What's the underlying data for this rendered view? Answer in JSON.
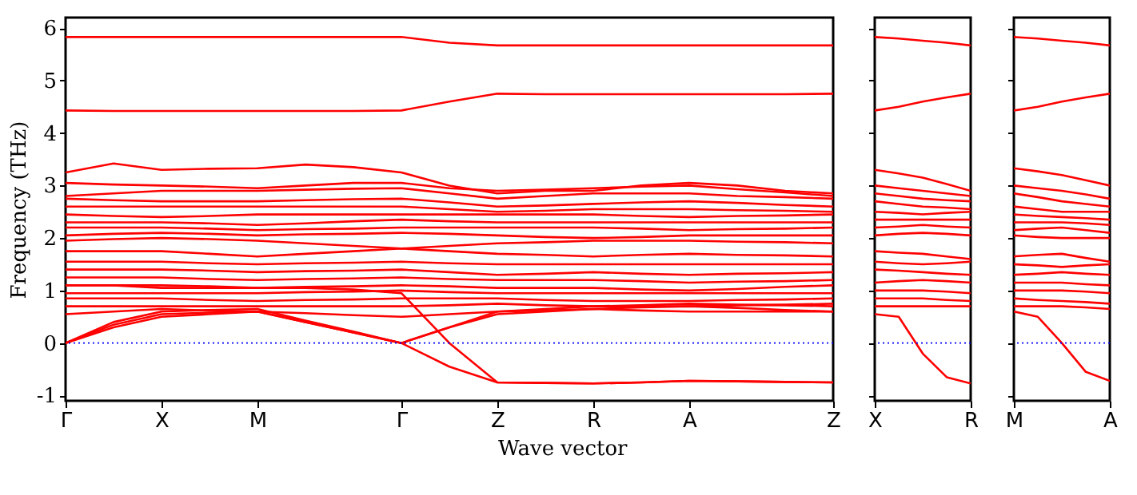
{
  "chart_data": [
    {
      "type": "line",
      "xlabel": "Wave vector",
      "ylabel": "Frequency (THz)",
      "categories": [
        "Γ",
        null,
        "X",
        null,
        "M",
        null,
        null,
        "Γ",
        null,
        "Z",
        null,
        "R",
        null,
        "A",
        null,
        null,
        "Z"
      ],
      "ylim": [
        -1.1,
        6.2
      ],
      "yticks": [
        -1,
        0,
        1,
        2,
        3,
        4,
        5,
        6
      ],
      "grid": false,
      "legend": false,
      "line_style": "solid",
      "marker": "none",
      "ref_lines": [
        {
          "axis": "y",
          "value": 0,
          "color": "#0000ff",
          "line_style": "dotted"
        }
      ],
      "series": [
        {
          "color": "#ff0000",
          "values": [
            5.83,
            5.83,
            5.83,
            5.83,
            5.83,
            5.83,
            5.83,
            5.83,
            5.72,
            5.67,
            5.67,
            5.67,
            5.67,
            5.67,
            5.67,
            5.67,
            5.67
          ]
        },
        {
          "color": "#ff0000",
          "values": [
            4.43,
            4.42,
            4.42,
            4.42,
            4.42,
            4.42,
            4.42,
            4.43,
            4.6,
            4.75,
            4.74,
            4.74,
            4.74,
            4.74,
            4.74,
            4.74,
            4.75
          ]
        },
        {
          "color": "#ff0000",
          "values": [
            3.25,
            3.42,
            3.3,
            3.32,
            3.33,
            3.4,
            3.35,
            3.25,
            3.0,
            2.85,
            2.9,
            2.9,
            3.0,
            3.05,
            3.0,
            2.9,
            2.85
          ]
        },
        {
          "color": "#ff0000",
          "values": [
            3.05,
            3.02,
            3.0,
            2.98,
            2.95,
            3.0,
            3.05,
            3.05,
            2.95,
            2.9,
            2.92,
            2.95,
            2.98,
            3.0,
            2.93,
            2.87,
            2.8
          ]
        },
        {
          "color": "#ff0000",
          "values": [
            2.8,
            2.85,
            2.9,
            2.9,
            2.9,
            2.92,
            2.94,
            2.95,
            2.85,
            2.75,
            2.8,
            2.85,
            2.85,
            2.85,
            2.8,
            2.78,
            2.75
          ]
        },
        {
          "color": "#ff0000",
          "values": [
            2.75,
            2.72,
            2.7,
            2.7,
            2.7,
            2.72,
            2.74,
            2.75,
            2.68,
            2.6,
            2.62,
            2.65,
            2.68,
            2.7,
            2.67,
            2.63,
            2.6
          ]
        },
        {
          "color": "#ff0000",
          "values": [
            2.6,
            2.6,
            2.6,
            2.6,
            2.6,
            2.6,
            2.6,
            2.6,
            2.55,
            2.5,
            2.52,
            2.55,
            2.55,
            2.55,
            2.53,
            2.52,
            2.5
          ]
        },
        {
          "color": "#ff0000",
          "values": [
            2.45,
            2.42,
            2.4,
            2.42,
            2.45,
            2.45,
            2.45,
            2.45,
            2.45,
            2.45,
            2.45,
            2.45,
            2.42,
            2.4,
            2.42,
            2.43,
            2.45
          ]
        },
        {
          "color": "#ff0000",
          "values": [
            2.3,
            2.3,
            2.3,
            2.28,
            2.25,
            2.28,
            2.32,
            2.35,
            2.32,
            2.3,
            2.3,
            2.3,
            2.3,
            2.3,
            2.3,
            2.3,
            2.3
          ]
        },
        {
          "color": "#ff0000",
          "values": [
            2.2,
            2.2,
            2.2,
            2.18,
            2.15,
            2.17,
            2.18,
            2.2,
            2.2,
            2.2,
            2.2,
            2.2,
            2.18,
            2.15,
            2.17,
            2.18,
            2.2
          ]
        },
        {
          "color": "#ff0000",
          "values": [
            2.05,
            2.08,
            2.1,
            2.08,
            2.05,
            2.07,
            2.08,
            2.1,
            2.08,
            2.05,
            2.02,
            2.0,
            2.02,
            2.05,
            2.05,
            2.05,
            2.05
          ]
        },
        {
          "color": "#ff0000",
          "values": [
            1.95,
            1.98,
            2.0,
            1.98,
            1.95,
            1.9,
            1.85,
            1.8,
            1.85,
            1.9,
            1.92,
            1.95,
            1.95,
            1.95,
            1.93,
            1.92,
            1.9
          ]
        },
        {
          "color": "#ff0000",
          "values": [
            1.75,
            1.75,
            1.75,
            1.7,
            1.65,
            1.7,
            1.75,
            1.8,
            1.75,
            1.7,
            1.68,
            1.65,
            1.68,
            1.7,
            1.68,
            1.67,
            1.65
          ]
        },
        {
          "color": "#ff0000",
          "values": [
            1.55,
            1.55,
            1.55,
            1.52,
            1.5,
            1.52,
            1.53,
            1.55,
            1.52,
            1.5,
            1.5,
            1.5,
            1.5,
            1.5,
            1.5,
            1.5,
            1.5
          ]
        },
        {
          "color": "#ff0000",
          "values": [
            1.4,
            1.4,
            1.4,
            1.38,
            1.35,
            1.37,
            1.38,
            1.4,
            1.35,
            1.3,
            1.32,
            1.35,
            1.32,
            1.3,
            1.32,
            1.33,
            1.35
          ]
        },
        {
          "color": "#ff0000",
          "values": [
            1.25,
            1.25,
            1.25,
            1.22,
            1.2,
            1.22,
            1.23,
            1.25,
            1.22,
            1.2,
            1.2,
            1.2,
            1.18,
            1.15,
            1.17,
            1.18,
            1.2
          ]
        },
        {
          "color": "#ff0000",
          "values": [
            1.1,
            1.1,
            1.1,
            1.08,
            1.05,
            1.07,
            1.08,
            1.1,
            1.08,
            1.05,
            1.05,
            1.05,
            1.02,
            1.0,
            1.03,
            1.07,
            1.1
          ]
        },
        {
          "color": "#ff0000",
          "values": [
            0.95,
            0.95,
            0.95,
            0.95,
            0.95,
            0.97,
            0.98,
            1.0,
            0.97,
            0.95,
            0.95,
            0.95,
            0.95,
            0.95,
            0.95,
            0.95,
            0.95
          ]
        },
        {
          "color": "#ff0000",
          "values": [
            0.85,
            0.85,
            0.85,
            0.82,
            0.8,
            0.82,
            0.83,
            0.85,
            0.85,
            0.85,
            0.82,
            0.8,
            0.8,
            0.8,
            0.82,
            0.83,
            0.85
          ]
        },
        {
          "color": "#ff0000",
          "values": [
            0.7,
            0.7,
            0.7,
            0.7,
            0.7,
            0.7,
            0.7,
            0.7,
            0.72,
            0.75,
            0.72,
            0.7,
            0.7,
            0.7,
            0.72,
            0.73,
            0.75
          ]
        },
        {
          "color": "#ff0000",
          "values": [
            0.55,
            0.6,
            0.65,
            0.62,
            0.6,
            0.57,
            0.53,
            0.5,
            0.55,
            0.6,
            0.62,
            0.65,
            0.62,
            0.6,
            0.6,
            0.6,
            0.6
          ]
        },
        {
          "color": "#ff0000",
          "values": [
            0,
            0.35,
            0.55,
            0.58,
            0.6,
            0.4,
            0.2,
            0,
            0.3,
            0.55,
            0.6,
            0.65,
            0.68,
            0.7,
            0.67,
            0.63,
            0.6
          ]
        },
        {
          "color": "#ff0000",
          "values": [
            0,
            0.4,
            0.6,
            0.63,
            0.65,
            0.43,
            0.22,
            0,
            0.3,
            0.6,
            0.65,
            0.7,
            0.72,
            0.75,
            0.73,
            0.72,
            0.7
          ]
        },
        {
          "color": "#ff0000",
          "values": [
            0,
            0.3,
            0.5,
            0.55,
            0.6,
            0.4,
            0.2,
            0,
            -0.45,
            -0.75,
            -0.76,
            -0.77,
            -0.75,
            -0.72,
            -0.73,
            -0.74,
            -0.75
          ]
        },
        {
          "color": "#ff0000",
          "values": [
            1.1,
            1.1,
            1.05,
            1.05,
            1.05,
            1.05,
            1.02,
            0.95,
            0,
            -0.75,
            -0.76,
            -0.77,
            -0.75,
            -0.72,
            -0.73,
            -0.74,
            -0.75
          ]
        }
      ]
    },
    {
      "type": "line",
      "categories": [
        "X",
        null,
        null,
        null,
        "R"
      ],
      "ylim": [
        -1.1,
        6.2
      ],
      "yticks": [
        -1,
        0,
        1,
        2,
        3,
        4,
        5,
        6
      ],
      "tick_labels": "x",
      "grid": false,
      "legend": false,
      "line_style": "solid",
      "marker": "none",
      "ref_lines": [
        {
          "axis": "y",
          "value": 0,
          "color": "#0000ff",
          "line_style": "dotted"
        }
      ],
      "series": [
        {
          "color": "#ff0000",
          "values": [
            5.83,
            5.8,
            5.76,
            5.72,
            5.67
          ]
        },
        {
          "color": "#ff0000",
          "values": [
            4.43,
            4.5,
            4.6,
            4.68,
            4.75
          ]
        },
        {
          "color": "#ff0000",
          "values": [
            3.3,
            3.23,
            3.15,
            3.03,
            2.9
          ]
        },
        {
          "color": "#ff0000",
          "values": [
            3.0,
            2.95,
            2.9,
            2.85,
            2.8
          ]
        },
        {
          "color": "#ff0000",
          "values": [
            2.85,
            2.8,
            2.75,
            2.72,
            2.7
          ]
        },
        {
          "color": "#ff0000",
          "values": [
            2.7,
            2.65,
            2.6,
            2.58,
            2.55
          ]
        },
        {
          "color": "#ff0000",
          "values": [
            2.5,
            2.48,
            2.45,
            2.48,
            2.5
          ]
        },
        {
          "color": "#ff0000",
          "values": [
            2.35,
            2.35,
            2.35,
            2.35,
            2.35
          ]
        },
        {
          "color": "#ff0000",
          "values": [
            2.2,
            2.22,
            2.25,
            2.22,
            2.2
          ]
        },
        {
          "color": "#ff0000",
          "values": [
            2.05,
            2.08,
            2.1,
            2.08,
            2.05
          ]
        },
        {
          "color": "#ff0000",
          "values": [
            1.75,
            1.72,
            1.7,
            1.65,
            1.6
          ]
        },
        {
          "color": "#ff0000",
          "values": [
            1.55,
            1.52,
            1.5,
            1.52,
            1.55
          ]
        },
        {
          "color": "#ff0000",
          "values": [
            1.4,
            1.38,
            1.35,
            1.32,
            1.3
          ]
        },
        {
          "color": "#ff0000",
          "values": [
            1.15,
            1.18,
            1.2,
            1.18,
            1.15
          ]
        },
        {
          "color": "#ff0000",
          "values": [
            1.0,
            1.0,
            1.0,
            0.98,
            0.95
          ]
        },
        {
          "color": "#ff0000",
          "values": [
            0.85,
            0.85,
            0.85,
            0.82,
            0.8
          ]
        },
        {
          "color": "#ff0000",
          "values": [
            0.7,
            0.7,
            0.7,
            0.7,
            0.7
          ]
        },
        {
          "color": "#ff0000",
          "values": [
            0.55,
            0.5,
            -0.2,
            -0.65,
            -0.77
          ]
        }
      ]
    },
    {
      "type": "line",
      "categories": [
        "M",
        null,
        null,
        null,
        "A"
      ],
      "ylim": [
        -1.1,
        6.2
      ],
      "yticks": [
        -1,
        0,
        1,
        2,
        3,
        4,
        5,
        6
      ],
      "tick_labels": "x",
      "grid": false,
      "legend": false,
      "line_style": "solid",
      "marker": "none",
      "ref_lines": [
        {
          "axis": "y",
          "value": 0,
          "color": "#0000ff",
          "line_style": "dotted"
        }
      ],
      "series": [
        {
          "color": "#ff0000",
          "values": [
            5.83,
            5.8,
            5.76,
            5.72,
            5.67
          ]
        },
        {
          "color": "#ff0000",
          "values": [
            4.43,
            4.5,
            4.6,
            4.68,
            4.75
          ]
        },
        {
          "color": "#ff0000",
          "values": [
            3.33,
            3.27,
            3.2,
            3.1,
            3.0
          ]
        },
        {
          "color": "#ff0000",
          "values": [
            3.0,
            2.95,
            2.9,
            2.83,
            2.75
          ]
        },
        {
          "color": "#ff0000",
          "values": [
            2.85,
            2.78,
            2.7,
            2.65,
            2.6
          ]
        },
        {
          "color": "#ff0000",
          "values": [
            2.6,
            2.55,
            2.5,
            2.5,
            2.5
          ]
        },
        {
          "color": "#ff0000",
          "values": [
            2.45,
            2.42,
            2.4,
            2.38,
            2.35
          ]
        },
        {
          "color": "#ff0000",
          "values": [
            2.3,
            2.3,
            2.3,
            2.28,
            2.25
          ]
        },
        {
          "color": "#ff0000",
          "values": [
            2.15,
            2.18,
            2.2,
            2.15,
            2.1
          ]
        },
        {
          "color": "#ff0000",
          "values": [
            2.05,
            2.02,
            2.0,
            2.0,
            2.0
          ]
        },
        {
          "color": "#ff0000",
          "values": [
            1.65,
            1.68,
            1.7,
            1.62,
            1.55
          ]
        },
        {
          "color": "#ff0000",
          "values": [
            1.5,
            1.48,
            1.45,
            1.48,
            1.5
          ]
        },
        {
          "color": "#ff0000",
          "values": [
            1.3,
            1.32,
            1.35,
            1.32,
            1.3
          ]
        },
        {
          "color": "#ff0000",
          "values": [
            1.15,
            1.15,
            1.15,
            1.12,
            1.1
          ]
        },
        {
          "color": "#ff0000",
          "values": [
            1.0,
            1.0,
            1.0,
            0.98,
            0.95
          ]
        },
        {
          "color": "#ff0000",
          "values": [
            0.85,
            0.82,
            0.8,
            0.78,
            0.75
          ]
        },
        {
          "color": "#ff0000",
          "values": [
            0.7,
            0.7,
            0.7,
            0.68,
            0.65
          ]
        },
        {
          "color": "#ff0000",
          "values": [
            0.6,
            0.5,
            0,
            -0.55,
            -0.72
          ]
        }
      ]
    }
  ]
}
